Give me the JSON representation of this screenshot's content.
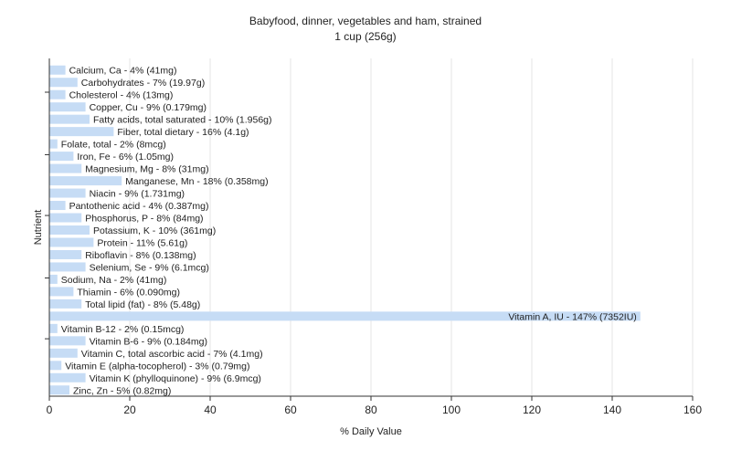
{
  "chart_data": {
    "type": "bar",
    "orientation": "horizontal",
    "title": "Babyfood, dinner, vegetables and ham, strained",
    "subtitle": "1 cup (256g)",
    "xlabel": "% Daily Value",
    "ylabel": "Nutrient",
    "xlim": [
      0,
      160
    ],
    "xticks": [
      0,
      20,
      40,
      60,
      80,
      100,
      120,
      140,
      160
    ],
    "grid": true,
    "bar_color": "#c6dcf5",
    "categories": [
      "Calcium, Ca",
      "Carbohydrates",
      "Cholesterol",
      "Copper, Cu",
      "Fatty acids, total saturated",
      "Fiber, total dietary",
      "Folate, total",
      "Iron, Fe",
      "Magnesium, Mg",
      "Manganese, Mn",
      "Niacin",
      "Pantothenic acid",
      "Phosphorus, P",
      "Potassium, K",
      "Protein",
      "Riboflavin",
      "Selenium, Se",
      "Sodium, Na",
      "Thiamin",
      "Total lipid (fat)",
      "Vitamin A, IU",
      "Vitamin B-12",
      "Vitamin B-6",
      "Vitamin C, total ascorbic acid",
      "Vitamin E (alpha-tocopherol)",
      "Vitamin K (phylloquinone)",
      "Zinc, Zn"
    ],
    "values": [
      4,
      7,
      4,
      9,
      10,
      16,
      2,
      6,
      8,
      18,
      9,
      4,
      8,
      10,
      11,
      8,
      9,
      2,
      6,
      8,
      147,
      2,
      9,
      7,
      3,
      9,
      5
    ],
    "labels": [
      "Calcium, Ca - 4% (41mg)",
      "Carbohydrates - 7% (19.97g)",
      "Cholesterol - 4% (13mg)",
      "Copper, Cu - 9% (0.179mg)",
      "Fatty acids, total saturated - 10% (1.956g)",
      "Fiber, total dietary - 16% (4.1g)",
      "Folate, total - 2% (8mcg)",
      "Iron, Fe - 6% (1.05mg)",
      "Magnesium, Mg - 8% (31mg)",
      "Manganese, Mn - 18% (0.358mg)",
      "Niacin - 9% (1.731mg)",
      "Pantothenic acid - 4% (0.387mg)",
      "Phosphorus, P - 8% (84mg)",
      "Potassium, K - 10% (361mg)",
      "Protein - 11% (5.61g)",
      "Riboflavin - 8% (0.138mg)",
      "Selenium, Se - 9% (6.1mcg)",
      "Sodium, Na - 2% (41mg)",
      "Thiamin - 6% (0.090mg)",
      "Total lipid (fat) - 8% (5.48g)",
      "Vitamin A, IU - 147% (7352IU)",
      "Vitamin B-12 - 2% (0.15mcg)",
      "Vitamin B-6 - 9% (0.184mg)",
      "Vitamin C, total ascorbic acid - 7% (4.1mg)",
      "Vitamin E (alpha-tocopherol) - 3% (0.79mg)",
      "Vitamin K (phylloquinone) - 9% (6.9mcg)",
      "Zinc, Zn - 5% (0.82mg)"
    ]
  }
}
